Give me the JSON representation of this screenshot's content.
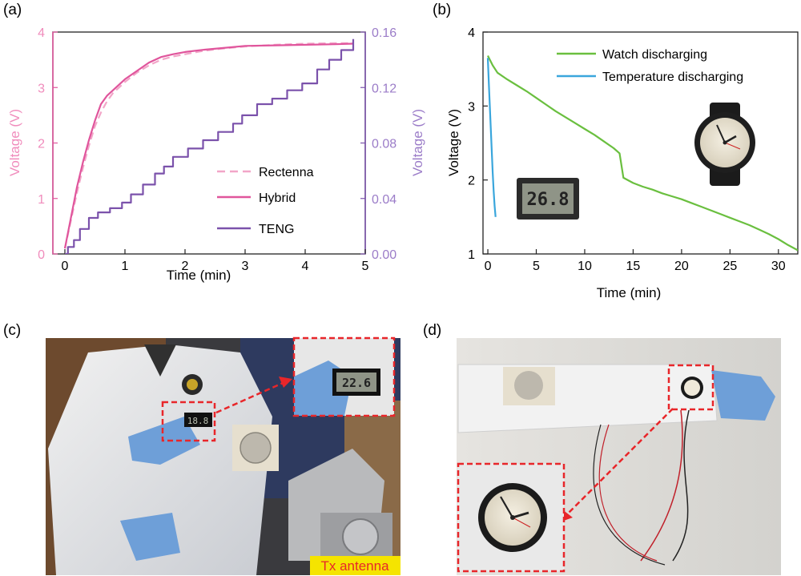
{
  "panels": {
    "a": "(a)",
    "b": "(b)",
    "c": "(c)",
    "d": "(d)"
  },
  "colors": {
    "rectenna": "#f2a6c8",
    "hybrid": "#e0559c",
    "teng": "#7b52ab",
    "watch": "#6abf3f",
    "temperature": "#3aa6dc",
    "callout": "#e8262a",
    "tx_bg": "#f5e400",
    "tx_text": "#e8262a"
  },
  "chart_data": [
    {
      "id": "a",
      "type": "line",
      "xlabel": "Time (min)",
      "ylabel_left": "Voltage (V)",
      "ylabel_right": "Voltage (V)",
      "xlim": [
        -0.2,
        5
      ],
      "ylim_left": [
        0,
        4
      ],
      "ylim_right": [
        0,
        0.16
      ],
      "xticks": [
        "0",
        "1",
        "2",
        "3",
        "4",
        "5"
      ],
      "yticks_left": [
        "0",
        "1",
        "2",
        "3",
        "4"
      ],
      "yticks_right": [
        "0.00",
        "0.04",
        "0.08",
        "0.12",
        "0.16"
      ],
      "legend_position": "bottom-right",
      "series": [
        {
          "name": "Rectenna",
          "axis": "left",
          "style": "dashed",
          "x": [
            0,
            0.1,
            0.2,
            0.3,
            0.4,
            0.5,
            0.6,
            0.7,
            0.8,
            1.0,
            1.2,
            1.4,
            1.6,
            1.8,
            2.0,
            2.3,
            2.6,
            3.0,
            3.5,
            4.0,
            4.5,
            4.8
          ],
          "y": [
            0.1,
            0.6,
            1.1,
            1.55,
            1.95,
            2.3,
            2.55,
            2.75,
            2.9,
            3.1,
            3.27,
            3.4,
            3.5,
            3.56,
            3.6,
            3.66,
            3.7,
            3.74,
            3.77,
            3.79,
            3.8,
            3.8
          ]
        },
        {
          "name": "Hybrid",
          "axis": "left",
          "style": "solid",
          "x": [
            0,
            0.1,
            0.2,
            0.3,
            0.4,
            0.5,
            0.6,
            0.7,
            0.8,
            1.0,
            1.2,
            1.4,
            1.6,
            1.8,
            2.0,
            2.3,
            2.6,
            3.0,
            3.5,
            4.0,
            4.5,
            4.8
          ],
          "y": [
            0.1,
            0.65,
            1.2,
            1.65,
            2.05,
            2.4,
            2.7,
            2.85,
            2.95,
            3.15,
            3.3,
            3.45,
            3.55,
            3.6,
            3.64,
            3.68,
            3.71,
            3.75,
            3.76,
            3.77,
            3.78,
            3.79
          ]
        },
        {
          "name": "TENG",
          "axis": "right",
          "style": "solid",
          "x": [
            0,
            0.05,
            0.15,
            0.25,
            0.4,
            0.55,
            0.75,
            0.95,
            1.1,
            1.3,
            1.5,
            1.65,
            1.8,
            2.05,
            2.3,
            2.55,
            2.8,
            2.95,
            3.2,
            3.45,
            3.7,
            3.95,
            4.2,
            4.4,
            4.6,
            4.8
          ],
          "y": [
            0.0,
            0.005,
            0.01,
            0.018,
            0.026,
            0.03,
            0.033,
            0.037,
            0.043,
            0.05,
            0.058,
            0.063,
            0.07,
            0.076,
            0.082,
            0.088,
            0.094,
            0.1,
            0.108,
            0.112,
            0.118,
            0.123,
            0.133,
            0.14,
            0.147,
            0.155
          ]
        }
      ]
    },
    {
      "id": "b",
      "type": "line",
      "xlabel": "Time (min)",
      "ylabel": "Voltage (V)",
      "xlim": [
        -0.5,
        32
      ],
      "ylim": [
        1,
        4
      ],
      "xticks": [
        "0",
        "5",
        "10",
        "15",
        "20",
        "25",
        "30"
      ],
      "yticks": [
        "1",
        "2",
        "3",
        "4"
      ],
      "legend_position": "top-right",
      "series": [
        {
          "name": "Watch discharging",
          "x": [
            0,
            0.5,
            1,
            2,
            3,
            4,
            5,
            6,
            7,
            8,
            9,
            10,
            11,
            12,
            13,
            13.6,
            14,
            15,
            16,
            17,
            18,
            19,
            20,
            21,
            22,
            23,
            24,
            25,
            26,
            27,
            28,
            29,
            30,
            31,
            32
          ],
          "y": [
            3.68,
            3.55,
            3.45,
            3.36,
            3.28,
            3.2,
            3.11,
            3.02,
            2.93,
            2.85,
            2.77,
            2.69,
            2.61,
            2.52,
            2.43,
            2.36,
            2.03,
            1.96,
            1.91,
            1.87,
            1.82,
            1.78,
            1.74,
            1.69,
            1.64,
            1.59,
            1.54,
            1.49,
            1.44,
            1.39,
            1.33,
            1.27,
            1.2,
            1.12,
            1.05
          ]
        },
        {
          "name": "Temperature discharging",
          "x": [
            0,
            0.1,
            0.2,
            0.3,
            0.4,
            0.5,
            0.6,
            0.7,
            0.8
          ],
          "y": [
            3.65,
            3.3,
            3.0,
            2.7,
            2.4,
            2.1,
            1.85,
            1.65,
            1.5
          ]
        }
      ]
    }
  ],
  "photos": {
    "c": {
      "inset_reading": "22.6",
      "small_reading": "18.8",
      "label": "Tx antenna"
    },
    "d": {}
  }
}
